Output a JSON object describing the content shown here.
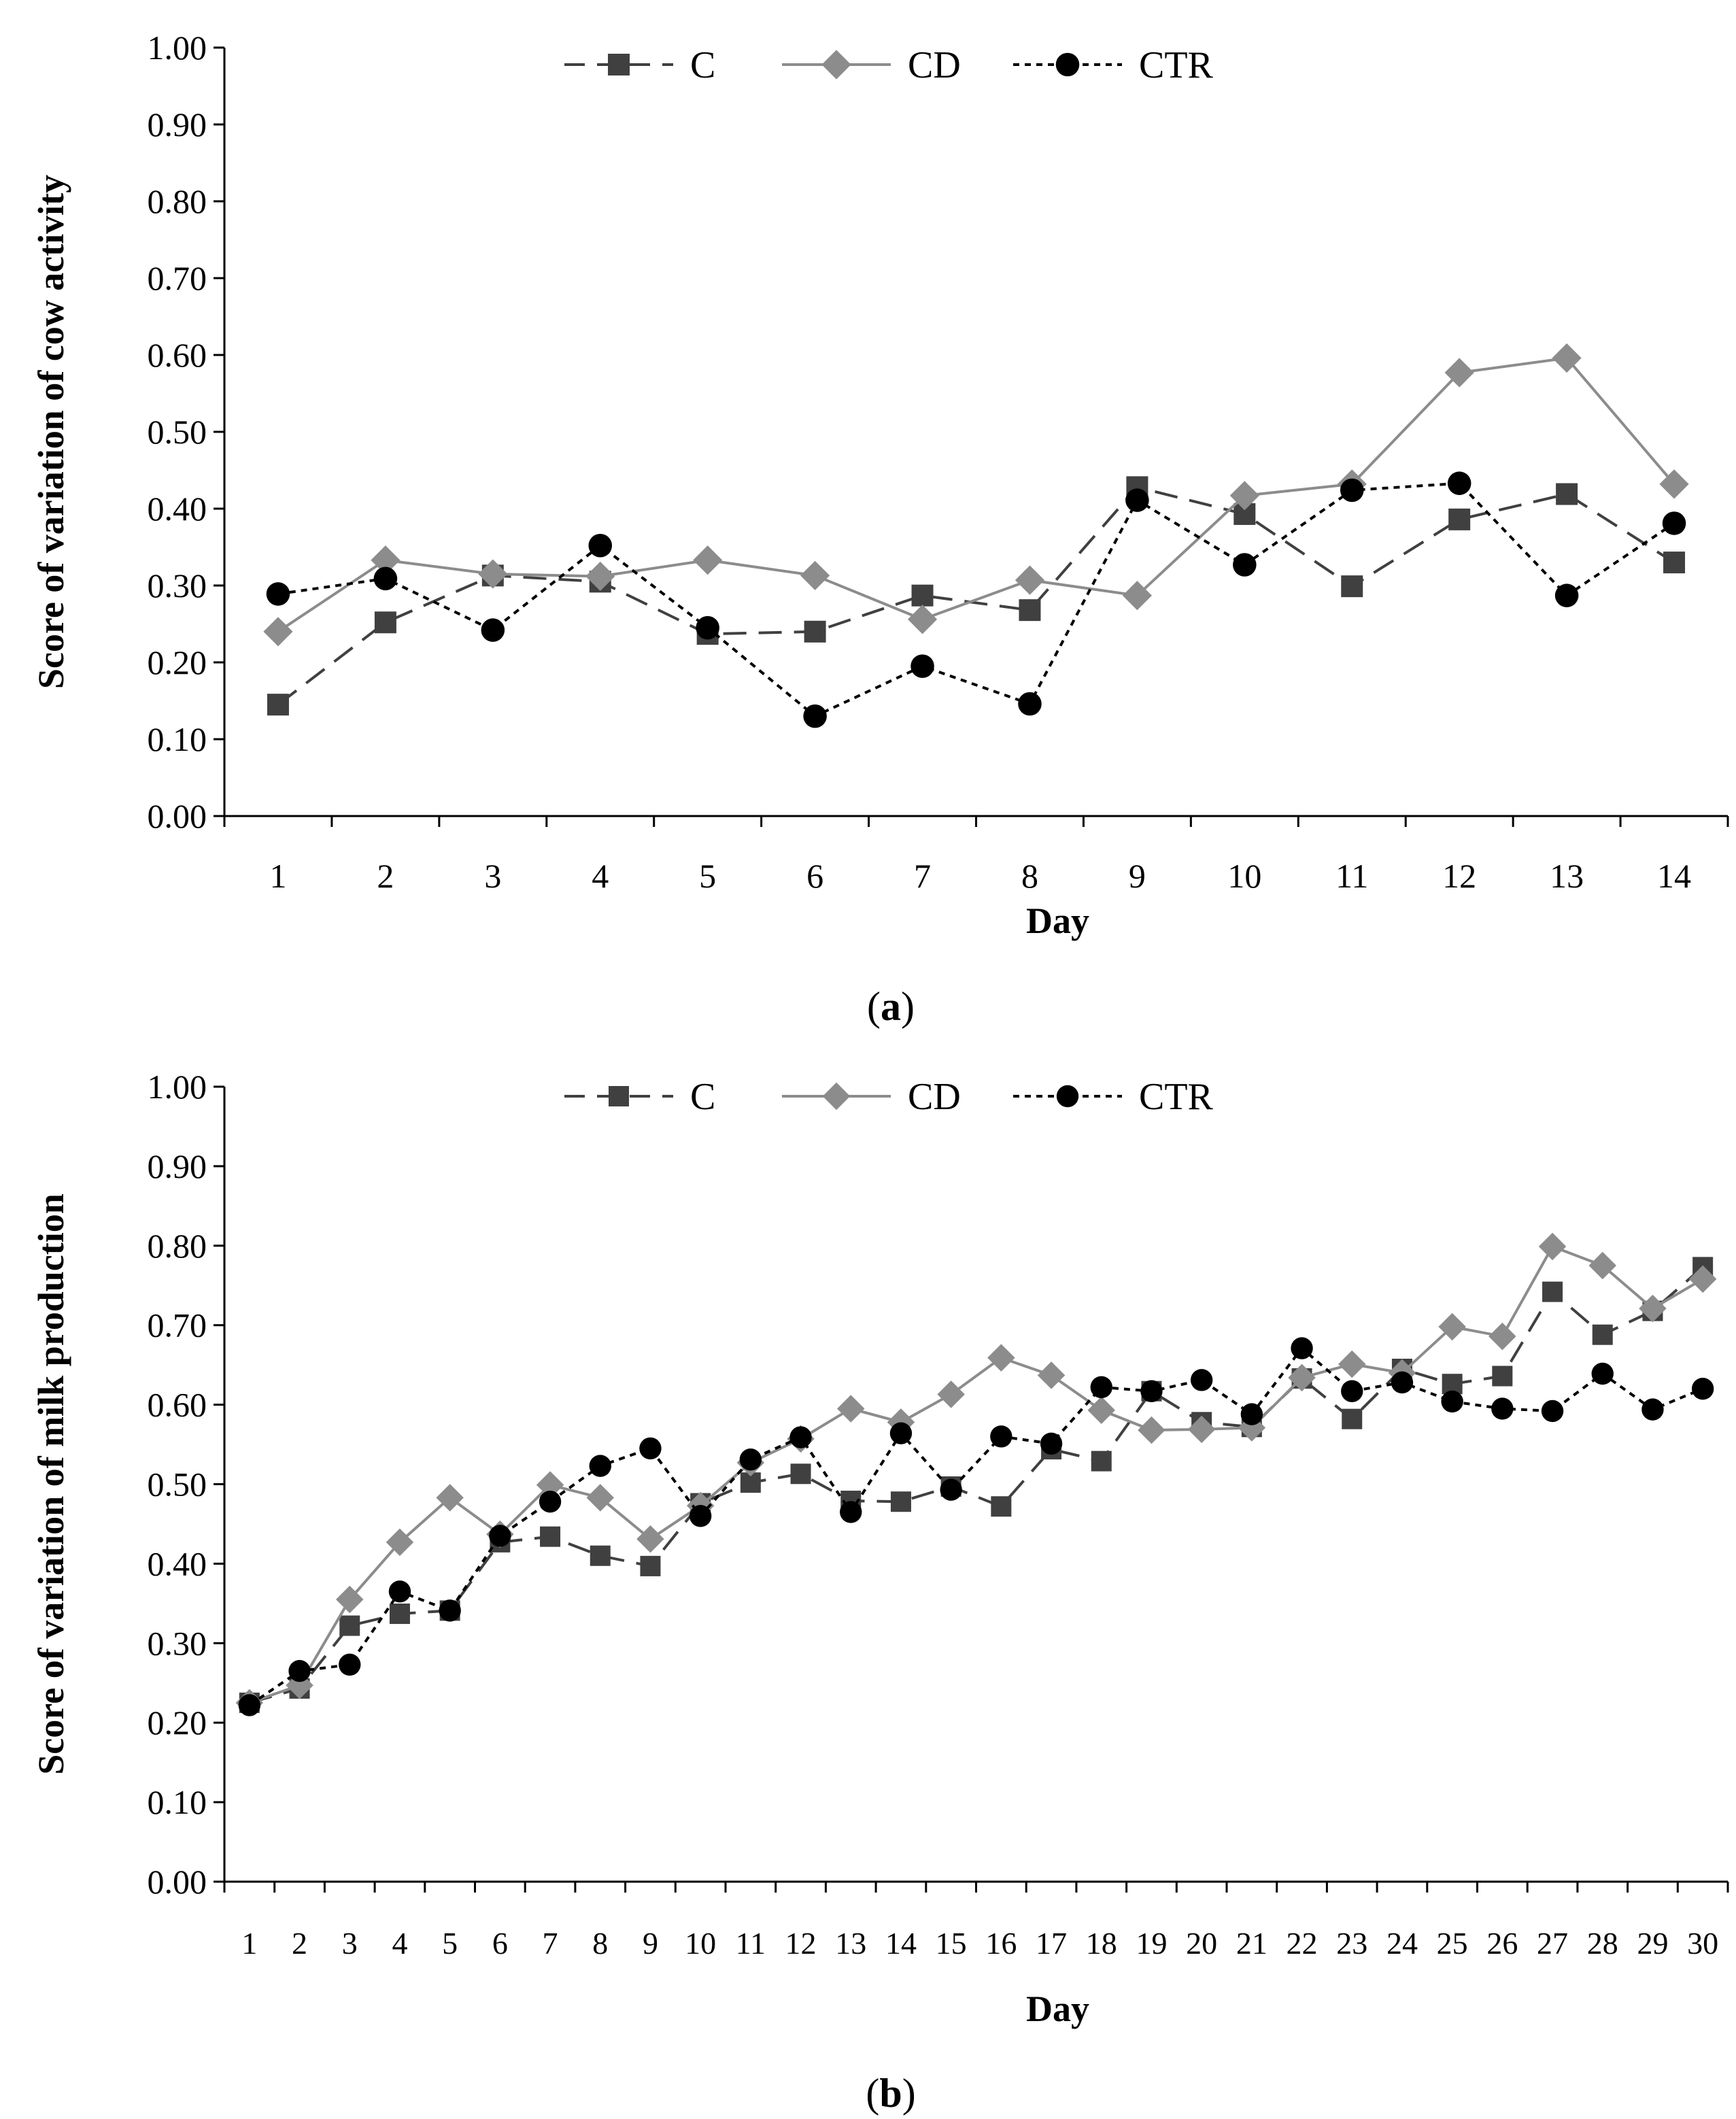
{
  "colors": {
    "C": "#404040",
    "CD": "#8c8c8c",
    "CTR": "#000000"
  },
  "chart_data": [
    {
      "type": "line",
      "panel_label_prefix": "(",
      "panel_label_letter": "a",
      "panel_label_suffix": ")",
      "xlabel": "Day",
      "ylabel": "Score of variation of cow activity",
      "ylim": [
        0,
        1
      ],
      "yticks": [
        "0.00",
        "0.10",
        "0.20",
        "0.30",
        "0.40",
        "0.50",
        "0.60",
        "0.70",
        "0.80",
        "0.90",
        "1.00"
      ],
      "categories": [
        "1",
        "2",
        "3",
        "4",
        "5",
        "6",
        "7",
        "8",
        "9",
        "10",
        "11",
        "12",
        "13",
        "14"
      ],
      "legend_position": "top",
      "series": [
        {
          "name": "C",
          "marker": "square",
          "dash": "long",
          "values": [
            0.145,
            0.252,
            0.313,
            0.305,
            0.237,
            0.24,
            0.287,
            0.268,
            0.428,
            0.393,
            0.299,
            0.386,
            0.419,
            0.33
          ]
        },
        {
          "name": "CD",
          "marker": "diamond",
          "dash": "solid",
          "values": [
            0.24,
            0.333,
            0.315,
            0.312,
            0.333,
            0.313,
            0.256,
            0.307,
            0.287,
            0.417,
            0.432,
            0.577,
            0.596,
            0.432
          ]
        },
        {
          "name": "CTR",
          "marker": "circle",
          "dash": "dotted",
          "values": [
            0.289,
            0.309,
            0.242,
            0.352,
            0.245,
            0.13,
            0.195,
            0.146,
            0.411,
            0.327,
            0.424,
            0.433,
            0.287,
            0.381
          ]
        }
      ]
    },
    {
      "type": "line",
      "panel_label_prefix": "(",
      "panel_label_letter": "b",
      "panel_label_suffix": ")",
      "xlabel": "Day",
      "ylabel": "Score of variation of milk production",
      "ylim": [
        0,
        1
      ],
      "yticks": [
        "0.00",
        "0.10",
        "0.20",
        "0.30",
        "0.40",
        "0.50",
        "0.60",
        "0.70",
        "0.80",
        "0.90",
        "1.00"
      ],
      "categories": [
        "1",
        "2",
        "3",
        "4",
        "5",
        "6",
        "7",
        "8",
        "9",
        "10",
        "11",
        "12",
        "13",
        "14",
        "15",
        "16",
        "17",
        "18",
        "19",
        "20",
        "21",
        "22",
        "23",
        "24",
        "25",
        "26",
        "27",
        "28",
        "29",
        "30"
      ],
      "legend_position": "top",
      "series": [
        {
          "name": "C",
          "marker": "square",
          "dash": "long",
          "values": [
            0.225,
            0.243,
            0.322,
            0.337,
            0.341,
            0.427,
            0.434,
            0.41,
            0.397,
            0.476,
            0.502,
            0.513,
            0.479,
            0.478,
            0.497,
            0.472,
            0.544,
            0.529,
            0.617,
            0.578,
            0.572,
            0.633,
            0.582,
            0.645,
            0.626,
            0.636,
            0.742,
            0.688,
            0.718,
            0.773
          ]
        },
        {
          "name": "CD",
          "marker": "diamond",
          "dash": "solid",
          "values": [
            0.225,
            0.247,
            0.355,
            0.427,
            0.483,
            0.437,
            0.499,
            0.483,
            0.431,
            0.473,
            0.527,
            0.557,
            0.595,
            0.578,
            0.613,
            0.659,
            0.637,
            0.593,
            0.568,
            0.569,
            0.571,
            0.634,
            0.651,
            0.64,
            0.698,
            0.686,
            0.799,
            0.775,
            0.721,
            0.758
          ]
        },
        {
          "name": "CTR",
          "marker": "circle",
          "dash": "dotted",
          "values": [
            0.222,
            0.265,
            0.273,
            0.365,
            0.341,
            0.435,
            0.478,
            0.523,
            0.545,
            0.46,
            0.531,
            0.559,
            0.465,
            0.564,
            0.493,
            0.56,
            0.551,
            0.622,
            0.617,
            0.631,
            0.588,
            0.671,
            0.617,
            0.628,
            0.604,
            0.595,
            0.592,
            0.639,
            0.594,
            0.62
          ]
        }
      ]
    }
  ]
}
